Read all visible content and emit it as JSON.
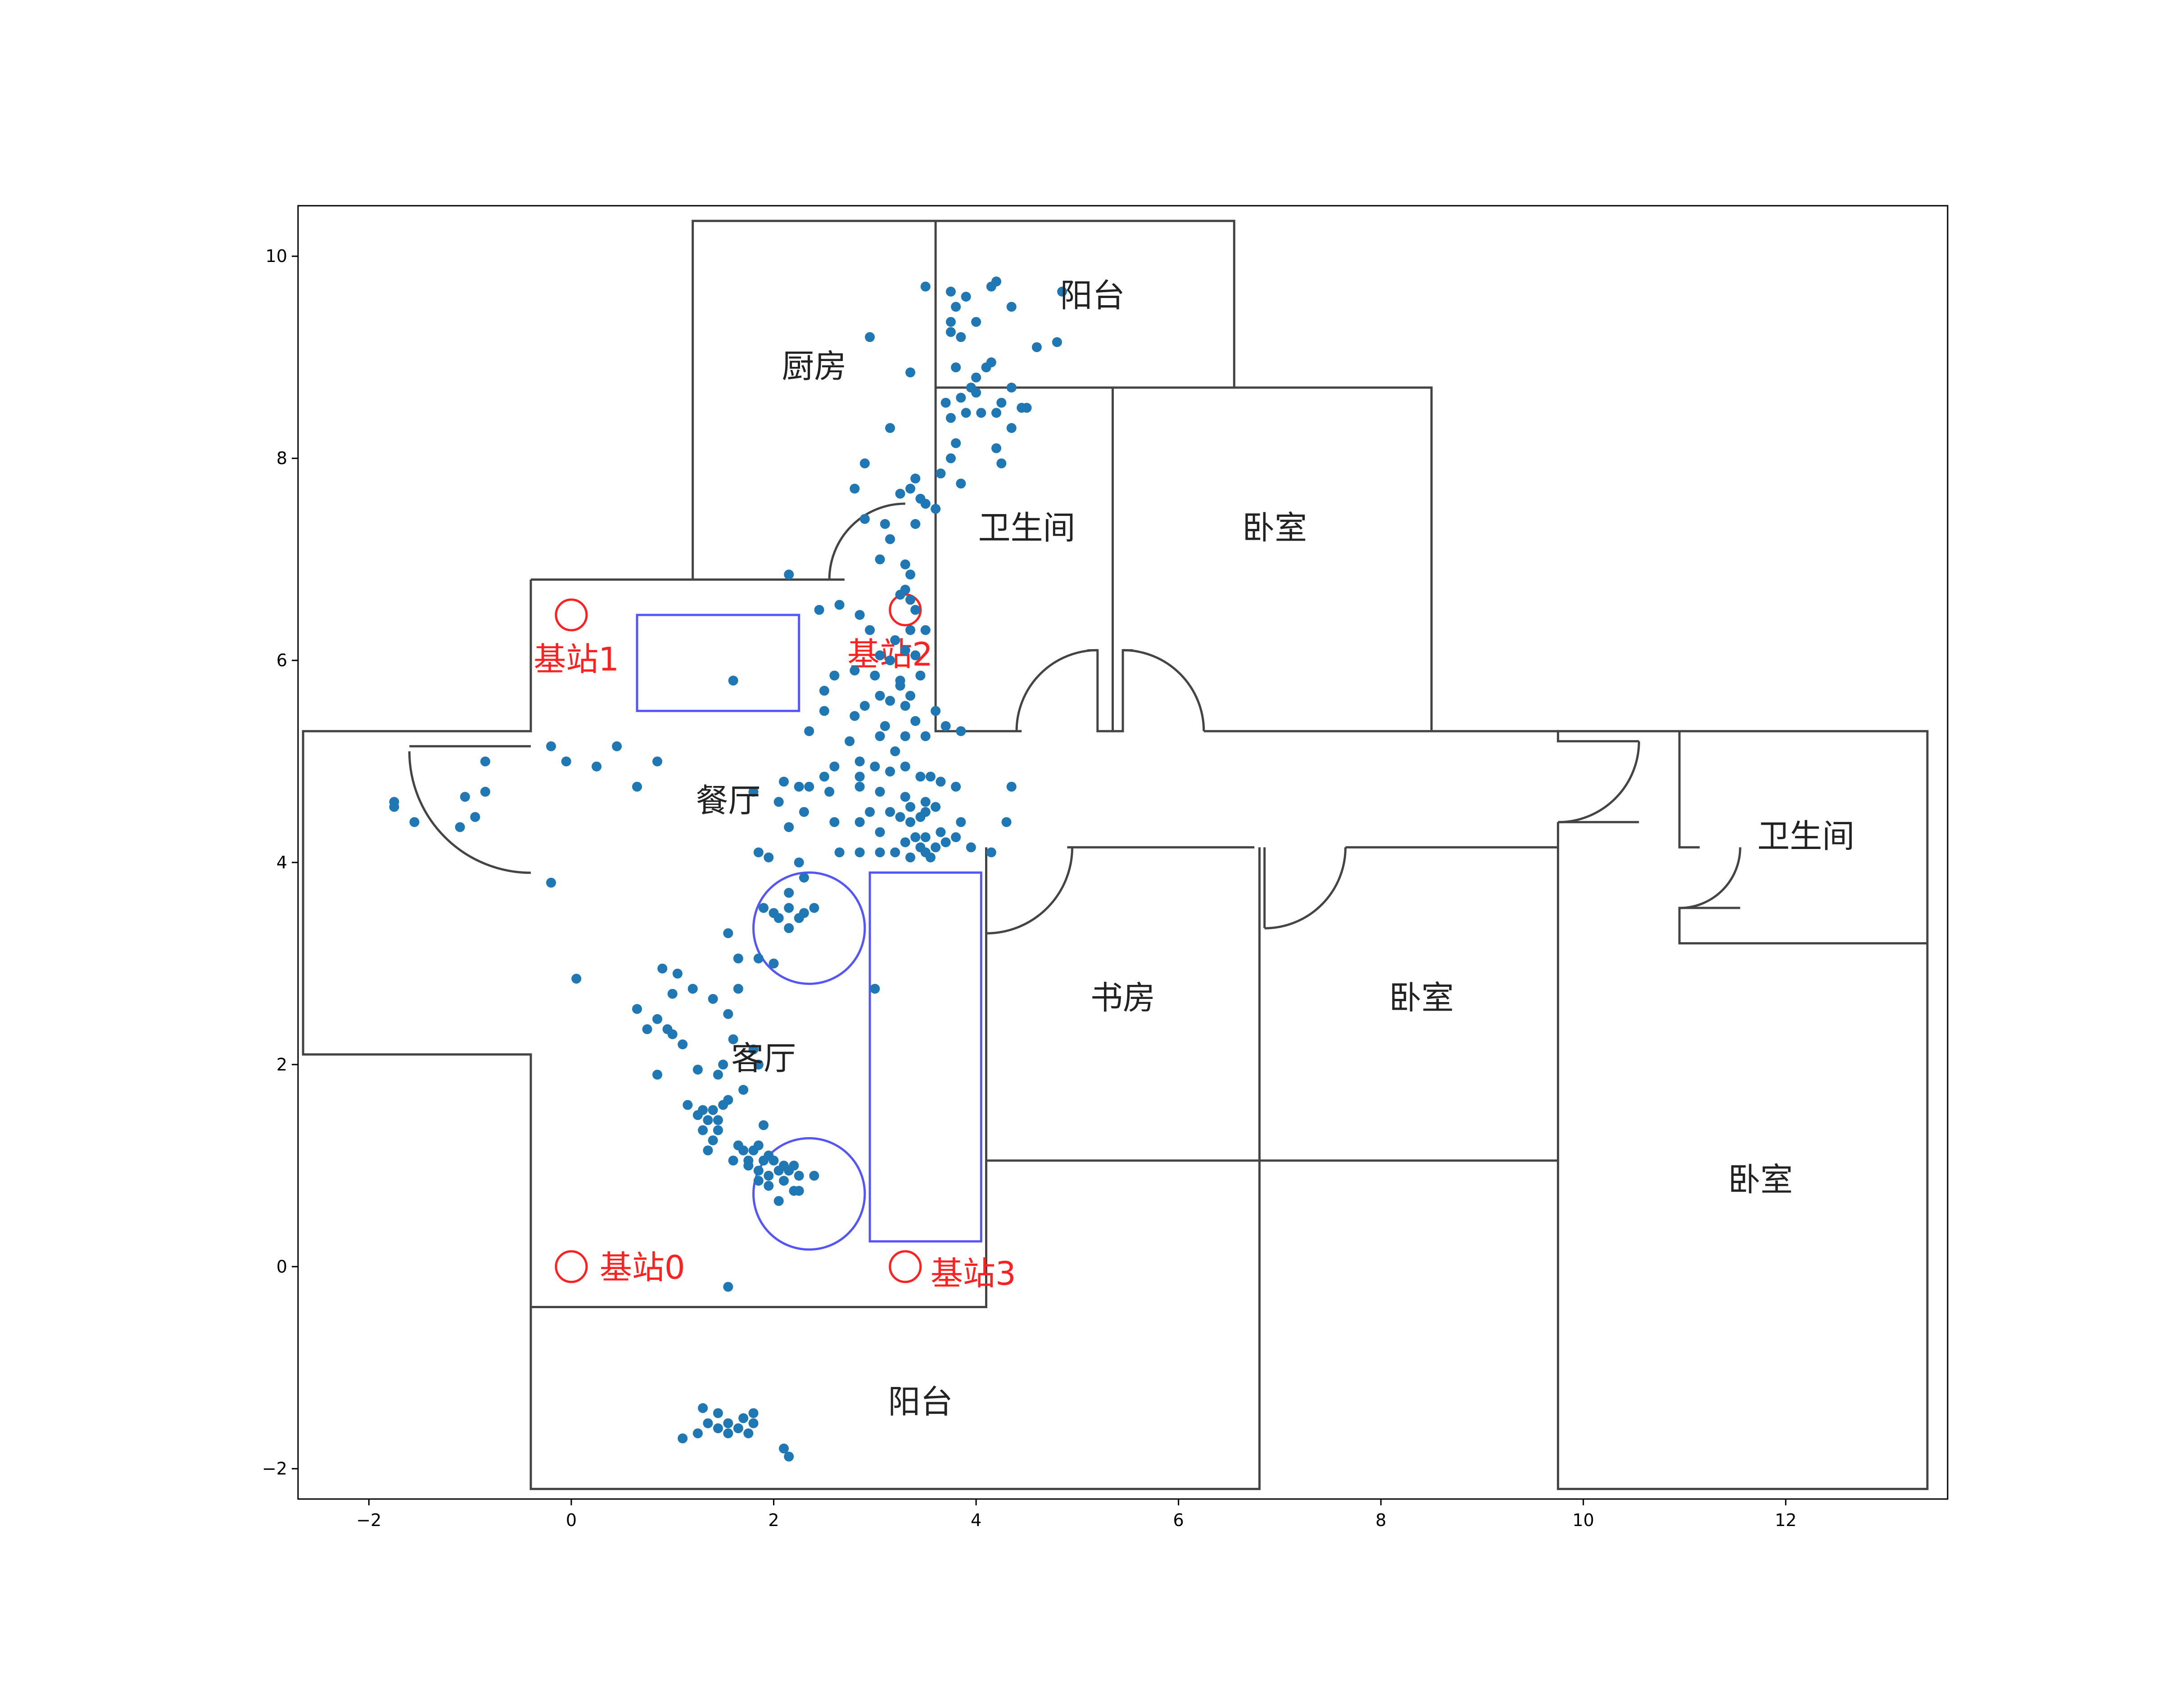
{
  "chart_data": {
    "type": "scatter",
    "title": "",
    "xlabel": "",
    "ylabel": "",
    "xlim": [
      -2.7,
      13.6
    ],
    "ylim": [
      -2.3,
      10.5
    ],
    "grid": false,
    "x_ticks": [
      {
        "value": -2,
        "label": "−2"
      },
      {
        "value": 0,
        "label": "0"
      },
      {
        "value": 2,
        "label": "2"
      },
      {
        "value": 4,
        "label": "4"
      },
      {
        "value": 6,
        "label": "6"
      },
      {
        "value": 8,
        "label": "8"
      },
      {
        "value": 10,
        "label": "10"
      },
      {
        "value": 12,
        "label": "12"
      }
    ],
    "y_ticks": [
      {
        "value": -2,
        "label": "−2"
      },
      {
        "value": 0,
        "label": "0"
      },
      {
        "value": 2,
        "label": "2"
      },
      {
        "value": 4,
        "label": "4"
      },
      {
        "value": 6,
        "label": "6"
      },
      {
        "value": 8,
        "label": "8"
      },
      {
        "value": 10,
        "label": "10"
      }
    ],
    "colors": {
      "wall": "#444444",
      "furniture": "#5555ff",
      "station": "#ff2020",
      "points": "#1f77b4"
    },
    "walls": [
      [
        [
          1.2,
          6.8
        ],
        [
          1.2,
          10.35
        ],
        [
          6.55,
          10.35
        ],
        [
          6.55,
          8.7
        ]
      ],
      [
        [
          3.6,
          10.35
        ],
        [
          3.6,
          8.7
        ]
      ],
      [
        [
          3.6,
          8.7
        ],
        [
          8.5,
          8.7
        ],
        [
          8.5,
          5.3
        ]
      ],
      [
        [
          3.6,
          8.7
        ],
        [
          3.6,
          5.3
        ],
        [
          4.45,
          5.3
        ]
      ],
      [
        [
          5.35,
          8.7
        ],
        [
          5.35,
          5.3
        ],
        [
          5.2,
          5.3
        ],
        [
          5.2,
          6.1
        ],
        [
          5.1,
          6.1
        ]
      ],
      [
        [
          5.35,
          5.3
        ],
        [
          5.45,
          5.3
        ],
        [
          5.45,
          6.1
        ],
        [
          5.55,
          6.1
        ]
      ],
      [
        [
          6.25,
          5.3
        ],
        [
          9.75,
          5.3
        ],
        [
          9.75,
          5.2
        ],
        [
          10.55,
          5.2
        ]
      ],
      [
        [
          9.75,
          4.4
        ],
        [
          10.55,
          4.4
        ]
      ],
      [
        [
          9.75,
          4.4
        ],
        [
          9.75,
          -2.2
        ],
        [
          13.4,
          -2.2
        ],
        [
          13.4,
          5.3
        ],
        [
          9.75,
          5.3
        ]
      ],
      [
        [
          10.95,
          5.3
        ],
        [
          10.95,
          4.15
        ],
        [
          11.15,
          4.15
        ]
      ],
      [
        [
          11.55,
          3.55
        ],
        [
          10.95,
          3.55
        ],
        [
          10.95,
          3.2
        ],
        [
          13.4,
          3.2
        ]
      ],
      [
        [
          -0.4,
          6.8
        ],
        [
          2.7,
          6.8
        ]
      ],
      [
        [
          -0.4,
          6.8
        ],
        [
          -0.4,
          5.3
        ],
        [
          -2.65,
          5.3
        ],
        [
          -2.65,
          2.1
        ],
        [
          -0.4,
          2.1
        ],
        [
          -0.4,
          -2.2
        ],
        [
          6.8,
          -2.2
        ],
        [
          6.8,
          4.15
        ]
      ],
      [
        [
          -0.4,
          5.15
        ],
        [
          -1.6,
          5.15
        ]
      ],
      [
        [
          -0.4,
          3.9
        ],
        [
          -0.4,
          3.9
        ]
      ],
      [
        [
          -0.4,
          -0.4
        ],
        [
          4.1,
          -0.4
        ],
        [
          4.1,
          4.15
        ]
      ],
      [
        [
          4.1,
          1.05
        ],
        [
          9.75,
          1.05
        ]
      ],
      [
        [
          4.1,
          4.1
        ],
        [
          4.1,
          3.35
        ]
      ],
      [
        [
          4.9,
          4.15
        ],
        [
          6.75,
          4.15
        ]
      ],
      [
        [
          6.85,
          4.15
        ],
        [
          6.85,
          3.35
        ]
      ],
      [
        [
          7.65,
          4.15
        ],
        [
          9.75,
          4.15
        ]
      ]
    ],
    "door_arcs": [
      {
        "cx": 3.3,
        "cy": 6.8,
        "r": 0.75,
        "a1": 90,
        "a2": 180
      },
      {
        "cx": 5.2,
        "cy": 5.3,
        "r": 0.8,
        "a1": 90,
        "a2": 180
      },
      {
        "cx": 5.45,
        "cy": 5.3,
        "r": 0.8,
        "a1": 0,
        "a2": 90
      },
      {
        "cx": -0.4,
        "cy": 5.1,
        "r": 1.2,
        "a1": 180,
        "a2": 270
      },
      {
        "cx": 4.1,
        "cy": 4.15,
        "r": 0.85,
        "a1": 270,
        "a2": 360
      },
      {
        "cx": 6.85,
        "cy": 4.15,
        "r": 0.8,
        "a1": 270,
        "a2": 360
      },
      {
        "cx": 9.75,
        "cy": 5.2,
        "r": 0.8,
        "a1": 270,
        "a2": 360
      },
      {
        "cx": 10.95,
        "cy": 4.15,
        "r": 0.6,
        "a1": 270,
        "a2": 360
      }
    ],
    "furniture_rects": [
      {
        "x0": 0.65,
        "y0": 5.5,
        "x1": 2.25,
        "y1": 6.45
      },
      {
        "x0": 2.95,
        "y0": 0.25,
        "x1": 4.05,
        "y1": 3.9
      }
    ],
    "furniture_circles": [
      {
        "cx": 2.35,
        "cy": 3.35,
        "r": 0.55
      },
      {
        "cx": 2.35,
        "cy": 0.72,
        "r": 0.55
      }
    ],
    "stations": [
      {
        "x": 0.0,
        "y": 0.0,
        "label": "基站0",
        "lx": 0.28,
        "ly": -0.12,
        "anchor": "start"
      },
      {
        "x": 0.0,
        "y": 6.45,
        "label": "基站1",
        "lx": 0.05,
        "ly": 5.9,
        "anchor": "middle"
      },
      {
        "x": 3.3,
        "y": 6.5,
        "label": "基站2",
        "lx": 3.15,
        "ly": 5.95,
        "anchor": "middle"
      },
      {
        "x": 3.3,
        "y": 0.0,
        "label": "基站3",
        "lx": 3.55,
        "ly": -0.18,
        "anchor": "start"
      }
    ],
    "room_labels": [
      {
        "text": "阳台",
        "x": 5.15,
        "y": 9.5
      },
      {
        "text": "厨房",
        "x": 2.4,
        "y": 8.8
      },
      {
        "text": "卫生间",
        "x": 4.5,
        "y": 7.2
      },
      {
        "text": "卧室",
        "x": 6.95,
        "y": 7.2
      },
      {
        "text": "餐厅",
        "x": 1.55,
        "y": 4.5
      },
      {
        "text": "卫生间",
        "x": 12.2,
        "y": 4.15
      },
      {
        "text": "书房",
        "x": 5.45,
        "y": 2.55
      },
      {
        "text": "卧室",
        "x": 8.4,
        "y": 2.55
      },
      {
        "text": "客厅",
        "x": 1.9,
        "y": 1.95
      },
      {
        "text": "卧室",
        "x": 11.75,
        "y": 0.75
      },
      {
        "text": "阳台",
        "x": 3.45,
        "y": -1.45
      }
    ],
    "points": [
      [
        3.5,
        9.7
      ],
      [
        3.75,
        9.65
      ],
      [
        3.9,
        9.6
      ],
      [
        4.15,
        9.7
      ],
      [
        4.2,
        9.75
      ],
      [
        4.35,
        9.5
      ],
      [
        4.85,
        9.65
      ],
      [
        3.8,
        9.5
      ],
      [
        3.75,
        9.35
      ],
      [
        4.0,
        9.35
      ],
      [
        3.75,
        9.25
      ],
      [
        3.85,
        9.2
      ],
      [
        4.6,
        9.1
      ],
      [
        4.8,
        9.15
      ],
      [
        2.95,
        9.2
      ],
      [
        3.35,
        8.85
      ],
      [
        3.8,
        8.9
      ],
      [
        4.0,
        8.8
      ],
      [
        4.1,
        8.9
      ],
      [
        4.15,
        8.95
      ],
      [
        3.95,
        8.7
      ],
      [
        4.35,
        8.7
      ],
      [
        3.7,
        8.55
      ],
      [
        3.85,
        8.6
      ],
      [
        4.0,
        8.65
      ],
      [
        4.25,
        8.55
      ],
      [
        4.45,
        8.5
      ],
      [
        3.75,
        8.4
      ],
      [
        3.9,
        8.45
      ],
      [
        4.05,
        8.45
      ],
      [
        4.2,
        8.45
      ],
      [
        4.5,
        8.5
      ],
      [
        4.35,
        8.3
      ],
      [
        3.15,
        8.3
      ],
      [
        3.8,
        8.15
      ],
      [
        4.2,
        8.1
      ],
      [
        3.75,
        8.0
      ],
      [
        4.25,
        7.95
      ],
      [
        2.9,
        7.95
      ],
      [
        3.4,
        7.8
      ],
      [
        3.65,
        7.85
      ],
      [
        3.85,
        7.75
      ],
      [
        3.25,
        7.65
      ],
      [
        3.35,
        7.7
      ],
      [
        3.45,
        7.6
      ],
      [
        3.5,
        7.55
      ],
      [
        3.6,
        7.5
      ],
      [
        2.8,
        7.7
      ],
      [
        2.9,
        7.4
      ],
      [
        3.1,
        7.35
      ],
      [
        3.4,
        7.35
      ],
      [
        3.15,
        7.2
      ],
      [
        3.05,
        7.0
      ],
      [
        3.3,
        6.95
      ],
      [
        3.35,
        6.85
      ],
      [
        2.15,
        6.85
      ],
      [
        3.25,
        6.65
      ],
      [
        3.3,
        6.7
      ],
      [
        3.35,
        6.6
      ],
      [
        3.4,
        6.5
      ],
      [
        2.45,
        6.5
      ],
      [
        2.65,
        6.55
      ],
      [
        2.85,
        6.45
      ],
      [
        2.95,
        6.3
      ],
      [
        3.2,
        6.2
      ],
      [
        3.35,
        6.3
      ],
      [
        3.5,
        6.3
      ],
      [
        3.3,
        6.1
      ],
      [
        3.05,
        6.05
      ],
      [
        3.15,
        6.0
      ],
      [
        3.4,
        6.05
      ],
      [
        2.6,
        5.85
      ],
      [
        2.8,
        5.9
      ],
      [
        3.0,
        5.85
      ],
      [
        3.25,
        5.8
      ],
      [
        3.45,
        5.85
      ],
      [
        3.25,
        5.75
      ],
      [
        3.05,
        5.65
      ],
      [
        3.35,
        5.65
      ],
      [
        2.5,
        5.7
      ],
      [
        1.6,
        5.8
      ],
      [
        2.9,
        5.55
      ],
      [
        3.15,
        5.6
      ],
      [
        3.3,
        5.55
      ],
      [
        3.6,
        5.5
      ],
      [
        2.5,
        5.5
      ],
      [
        2.8,
        5.45
      ],
      [
        3.4,
        5.4
      ],
      [
        3.7,
        5.35
      ],
      [
        3.85,
        5.3
      ],
      [
        3.3,
        5.25
      ],
      [
        3.5,
        5.25
      ],
      [
        2.35,
        5.3
      ],
      [
        3.1,
        5.35
      ],
      [
        2.75,
        5.2
      ],
      [
        3.05,
        5.25
      ],
      [
        3.2,
        5.1
      ],
      [
        2.85,
        5.0
      ],
      [
        3.0,
        4.95
      ],
      [
        3.15,
        4.9
      ],
      [
        3.3,
        4.95
      ],
      [
        3.45,
        4.85
      ],
      [
        3.55,
        4.85
      ],
      [
        3.65,
        4.8
      ],
      [
        3.8,
        4.75
      ],
      [
        2.6,
        4.95
      ],
      [
        2.85,
        4.85
      ],
      [
        2.1,
        4.8
      ],
      [
        2.25,
        4.75
      ],
      [
        2.35,
        4.75
      ],
      [
        2.5,
        4.85
      ],
      [
        4.35,
        4.75
      ],
      [
        2.55,
        4.7
      ],
      [
        2.85,
        4.75
      ],
      [
        3.05,
        4.7
      ],
      [
        3.3,
        4.65
      ],
      [
        3.5,
        4.6
      ],
      [
        3.6,
        4.55
      ],
      [
        1.8,
        4.7
      ],
      [
        2.05,
        4.6
      ],
      [
        2.95,
        4.5
      ],
      [
        3.15,
        4.5
      ],
      [
        3.35,
        4.55
      ],
      [
        3.5,
        4.5
      ],
      [
        3.25,
        4.45
      ],
      [
        2.3,
        4.5
      ],
      [
        2.15,
        4.35
      ],
      [
        2.6,
        4.4
      ],
      [
        2.85,
        4.4
      ],
      [
        3.35,
        4.4
      ],
      [
        3.45,
        4.45
      ],
      [
        3.85,
        4.4
      ],
      [
        4.3,
        4.4
      ],
      [
        3.3,
        4.2
      ],
      [
        3.4,
        4.25
      ],
      [
        3.5,
        4.25
      ],
      [
        3.65,
        4.3
      ],
      [
        3.8,
        4.25
      ],
      [
        3.05,
        4.1
      ],
      [
        3.2,
        4.1
      ],
      [
        3.45,
        4.15
      ],
      [
        3.5,
        4.1
      ],
      [
        3.6,
        4.15
      ],
      [
        3.7,
        4.2
      ],
      [
        2.65,
        4.1
      ],
      [
        2.85,
        4.1
      ],
      [
        3.05,
        4.3
      ],
      [
        3.35,
        4.05
      ],
      [
        3.55,
        4.05
      ],
      [
        1.85,
        4.1
      ],
      [
        1.95,
        4.05
      ],
      [
        2.25,
        4.0
      ],
      [
        4.15,
        4.1
      ],
      [
        3.95,
        4.15
      ],
      [
        2.3,
        3.85
      ],
      [
        2.15,
        3.7
      ],
      [
        2.0,
        3.5
      ],
      [
        2.15,
        3.55
      ],
      [
        2.25,
        3.45
      ],
      [
        2.3,
        3.5
      ],
      [
        2.4,
        3.55
      ],
      [
        2.05,
        3.45
      ],
      [
        1.9,
        3.55
      ],
      [
        2.15,
        3.35
      ],
      [
        1.55,
        3.3
      ],
      [
        1.65,
        3.05
      ],
      [
        1.85,
        3.05
      ],
      [
        2.0,
        3.0
      ],
      [
        3.0,
        2.75
      ],
      [
        0.9,
        2.95
      ],
      [
        1.05,
        2.9
      ],
      [
        1.0,
        2.7
      ],
      [
        1.2,
        2.75
      ],
      [
        1.65,
        2.75
      ],
      [
        1.4,
        2.65
      ],
      [
        0.65,
        2.55
      ],
      [
        1.55,
        2.5
      ],
      [
        0.85,
        2.45
      ],
      [
        0.75,
        2.35
      ],
      [
        0.95,
        2.35
      ],
      [
        1.0,
        2.3
      ],
      [
        1.1,
        2.2
      ],
      [
        1.6,
        2.25
      ],
      [
        1.8,
        2.15
      ],
      [
        1.85,
        2.0
      ],
      [
        1.5,
        2.0
      ],
      [
        1.45,
        1.9
      ],
      [
        1.7,
        1.75
      ],
      [
        1.55,
        1.65
      ],
      [
        1.25,
        1.95
      ],
      [
        0.85,
        1.9
      ],
      [
        1.15,
        1.6
      ],
      [
        1.3,
        1.55
      ],
      [
        1.4,
        1.55
      ],
      [
        1.5,
        1.6
      ],
      [
        1.25,
        1.5
      ],
      [
        1.35,
        1.45
      ],
      [
        1.45,
        1.45
      ],
      [
        1.3,
        1.35
      ],
      [
        1.45,
        1.35
      ],
      [
        1.9,
        1.4
      ],
      [
        1.4,
        1.25
      ],
      [
        1.65,
        1.2
      ],
      [
        1.7,
        1.15
      ],
      [
        1.8,
        1.15
      ],
      [
        1.85,
        1.2
      ],
      [
        1.95,
        1.1
      ],
      [
        1.75,
        1.05
      ],
      [
        1.9,
        1.05
      ],
      [
        2.0,
        1.05
      ],
      [
        2.1,
        1.0
      ],
      [
        2.2,
        1.0
      ],
      [
        1.85,
        0.95
      ],
      [
        1.95,
        0.9
      ],
      [
        2.05,
        0.95
      ],
      [
        2.15,
        0.95
      ],
      [
        2.25,
        0.9
      ],
      [
        2.4,
        0.9
      ],
      [
        1.95,
        0.8
      ],
      [
        2.1,
        0.85
      ],
      [
        2.2,
        0.75
      ],
      [
        1.85,
        0.85
      ],
      [
        1.35,
        1.15
      ],
      [
        1.6,
        1.05
      ],
      [
        1.75,
        1.0
      ],
      [
        2.25,
        0.75
      ],
      [
        2.05,
        0.65
      ],
      [
        1.55,
        -0.2
      ],
      [
        1.3,
        -1.4
      ],
      [
        1.45,
        -1.45
      ],
      [
        1.7,
        -1.5
      ],
      [
        1.8,
        -1.45
      ],
      [
        1.35,
        -1.55
      ],
      [
        1.55,
        -1.55
      ],
      [
        1.65,
        -1.6
      ],
      [
        1.8,
        -1.55
      ],
      [
        1.25,
        -1.65
      ],
      [
        1.45,
        -1.6
      ],
      [
        1.55,
        -1.65
      ],
      [
        1.75,
        -1.65
      ],
      [
        1.1,
        -1.7
      ],
      [
        2.1,
        -1.8
      ],
      [
        2.15,
        -1.88
      ],
      [
        -1.75,
        4.6
      ],
      [
        -1.75,
        4.55
      ],
      [
        -1.55,
        4.4
      ],
      [
        -1.1,
        4.35
      ],
      [
        -0.95,
        4.45
      ],
      [
        -1.05,
        4.65
      ],
      [
        -0.85,
        4.7
      ],
      [
        -0.85,
        5.0
      ],
      [
        -0.2,
        5.15
      ],
      [
        -0.05,
        5.0
      ],
      [
        0.25,
        4.95
      ],
      [
        0.45,
        5.15
      ],
      [
        0.85,
        5.0
      ],
      [
        0.65,
        4.75
      ],
      [
        -0.2,
        3.8
      ],
      [
        0.05,
        2.85
      ]
    ]
  }
}
